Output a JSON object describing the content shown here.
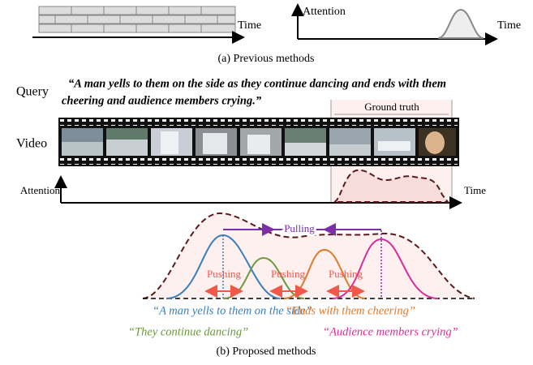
{
  "panel_a": {
    "timeline_label": "Time",
    "attention_label": "Attention",
    "attention_time_label": "Time",
    "caption": "(a) Previous methods"
  },
  "panel_b": {
    "query_label": "Query",
    "query_lines": [
      "“A man yells to them on the side as they continue dancing and ends with them",
      "cheering and audience members crying.”"
    ],
    "ground_truth_label": "Ground truth",
    "video_label": "Video",
    "attention_label": "Attention",
    "time_label": "Time",
    "pulling_label": "Pulling",
    "pushing_labels": [
      "Pushing",
      "Pushing",
      "Pushing"
    ],
    "segments": [
      "“A man yells to them on the side”",
      "“Ends with them cheering”",
      "“They continue dancing”",
      "“Audience members crying”"
    ],
    "caption": "(b) Proposed methods"
  }
}
